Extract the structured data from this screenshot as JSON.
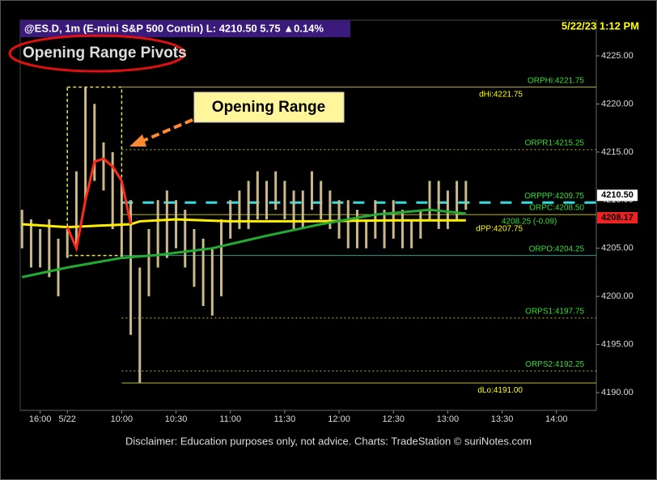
{
  "chart_data": {
    "type": "price-bars",
    "header": "@ES.D, 1m (E-mini S&P 500 Contin)  L: 4210.50  5.75 ▲0.14%",
    "title": "Opening Range Pivots",
    "timestamp": "5/22/23 1:12 PM",
    "annotation": "Opening Range",
    "footer": "Disclaimer: Education purposes only, not advice.   Charts: TradeStation    © suriNotes.com",
    "side_note": "4208.25 (-0.09)",
    "xlim": [
      544,
      862
    ],
    "ylim": [
      4188.15,
      4228.7
    ],
    "xticks": [
      {
        "value": 555,
        "label": "16:00"
      },
      {
        "value": 570,
        "label": "5/22"
      },
      {
        "value": 600,
        "label": "10:00"
      },
      {
        "value": 630,
        "label": "10:30"
      },
      {
        "value": 660,
        "label": "11:00"
      },
      {
        "value": 690,
        "label": "11:30"
      },
      {
        "value": 720,
        "label": "12:00"
      },
      {
        "value": 750,
        "label": "12:30"
      },
      {
        "value": 780,
        "label": "13:00"
      },
      {
        "value": 810,
        "label": "13:30"
      },
      {
        "value": 840,
        "label": "14:00"
      }
    ],
    "yticks": [
      {
        "value": 4190,
        "label": "4190.00"
      },
      {
        "value": 4195,
        "label": "4195.00"
      },
      {
        "value": 4200,
        "label": "4200.00"
      },
      {
        "value": 4205,
        "label": "4205.00"
      },
      {
        "value": 4210,
        "label": "4210.00"
      },
      {
        "value": 4215,
        "label": "4215.00"
      },
      {
        "value": 4220,
        "label": "4220.00"
      },
      {
        "value": 4225,
        "label": "4225.00"
      }
    ],
    "bars": {
      "color": "#c9b98b",
      "x": [
        545,
        550,
        555,
        560,
        565,
        570,
        575,
        580,
        585,
        590,
        595,
        600,
        605,
        610,
        615,
        620,
        625,
        630,
        635,
        640,
        645,
        650,
        655,
        660,
        665,
        670,
        675,
        680,
        685,
        690,
        695,
        700,
        705,
        710,
        715,
        720,
        725,
        730,
        735,
        740,
        745,
        750,
        755,
        760,
        765,
        770,
        775,
        780,
        785,
        790
      ],
      "high": [
        4209,
        4208,
        4207,
        4208,
        4206,
        4207,
        4213,
        4221.75,
        4220,
        4216,
        4215,
        4212,
        4210,
        4203,
        4207,
        4210,
        4211,
        4210,
        4209,
        4207,
        4206,
        4205,
        4208,
        4210,
        4211,
        4212,
        4213,
        4212,
        4213,
        4212,
        4211,
        4211,
        4213,
        4212,
        4211,
        4210,
        4210,
        4209,
        4208,
        4210,
        4209,
        4210,
        4209,
        4208,
        4209,
        4212,
        4212,
        4211,
        4212,
        4212
      ],
      "low": [
        4205,
        4203,
        4203,
        4202,
        4200,
        4204,
        4205,
        4210,
        4212,
        4211,
        4207,
        4204,
        4196,
        4191,
        4200,
        4203,
        4204,
        4205,
        4203,
        4201,
        4199,
        4198,
        4200,
        4206,
        4207,
        4207,
        4208,
        4208,
        4209,
        4208,
        4207,
        4207,
        4209,
        4208,
        4207,
        4206,
        4205,
        4205,
        4205,
        4206,
        4205,
        4206,
        4205,
        4205,
        4206,
        4208,
        4207,
        4207,
        4208,
        4209
      ]
    },
    "lines": [
      {
        "color": "#ffee00",
        "x": [
          545,
          570,
          605,
          610,
          630,
          660,
          700,
          750,
          790
        ],
        "values": [
          4207.5,
          4207.2,
          4207.5,
          4207.8,
          4208,
          4207.8,
          4207.8,
          4207.9,
          4207.9
        ]
      },
      {
        "color": "#ff2a1a",
        "x": [
          570,
          575,
          580,
          585,
          590,
          595,
          600,
          605
        ],
        "values": [
          4207.2,
          4205,
          4210,
          4214,
          4214.3,
          4213.5,
          4212,
          4207.5
        ]
      },
      {
        "color": "#22aa33",
        "x": [
          545,
          570,
          600,
          620,
          650,
          680,
          710,
          740,
          770,
          790
        ],
        "values": [
          4202,
          4203,
          4204,
          4204.3,
          4205,
          4206.3,
          4207.5,
          4208.5,
          4209,
          4208.6
        ]
      }
    ],
    "opening_range": {
      "start": 570,
      "end": 600,
      "high": 4221.75,
      "low": 4204.25,
      "color": "#e8e040"
    },
    "levels": [
      {
        "label": "ORPHi:4221.75",
        "value": 4221.75,
        "line": "solid",
        "line_color": "#b8b840",
        "color": "#33dd33"
      },
      {
        "label": "dHi:4221.75",
        "value": 4221.75,
        "line": "none",
        "line_color": "#b8b840",
        "color": "#ffff00"
      },
      {
        "label": "ORPR1:4215.25",
        "value": 4215.25,
        "line": "dotted",
        "line_color": "#b8b840",
        "color": "#33dd33"
      },
      {
        "label": "ORPPP:4209.75",
        "value": 4209.75,
        "line": "dashed",
        "line_color": "#33dddd",
        "color": "#33dd33"
      },
      {
        "label": "ORPC:4208.50",
        "value": 4208.5,
        "line": "solid",
        "line_color": "#b8b840",
        "color": "#33dd33"
      },
      {
        "label": "dPP:4207.75",
        "value": 4207.75,
        "line": "none",
        "line_color": "#b8b840",
        "color": "#ffff00"
      },
      {
        "label": "ORPO:4204.25",
        "value": 4204.25,
        "line": "solid",
        "line_color": "#2a9a8a",
        "color": "#33dd33"
      },
      {
        "label": "ORPS1:4197.75",
        "value": 4197.75,
        "line": "dotted",
        "line_color": "#b8b840",
        "color": "#33dd33"
      },
      {
        "label": "ORPS2:4192.25",
        "value": 4192.25,
        "line": "dotted",
        "line_color": "#b8b840",
        "color": "#33dd33"
      },
      {
        "label": "dLo:4191.00",
        "value": 4191.0,
        "line": "solid",
        "line_color": "#b8b840",
        "color": "#ffff00"
      }
    ],
    "price_tags": [
      {
        "value": 4210.5,
        "label": "4210.50",
        "color": "#ffffff"
      },
      {
        "value": 4208.17,
        "label": "4208.17",
        "color": "#ee2222"
      }
    ]
  }
}
